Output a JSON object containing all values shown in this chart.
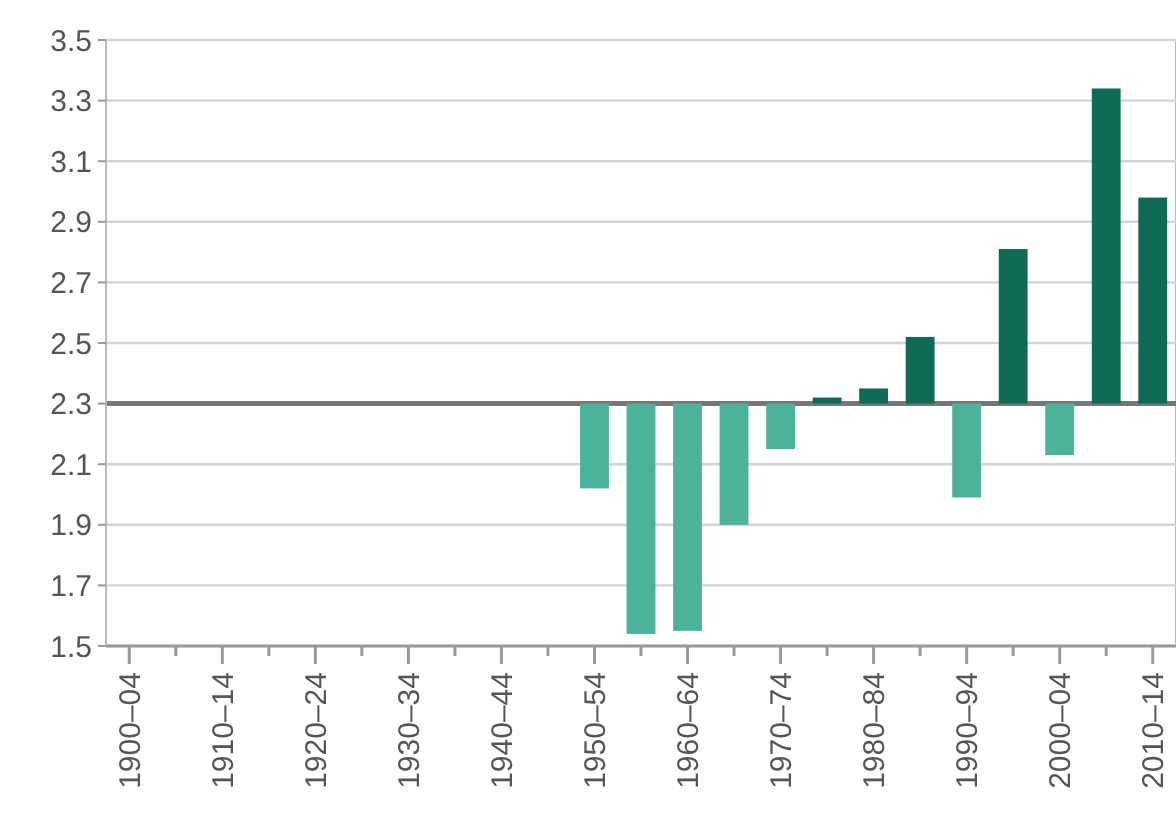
{
  "chart_data": {
    "type": "bar",
    "categories": [
      "1900–04",
      null,
      "1910–14",
      null,
      "1920–24",
      null,
      "1930–34",
      null,
      "1940–44",
      null,
      "1950–54",
      null,
      "1960–64",
      null,
      "1970–74",
      null,
      "1980–84",
      null,
      "1990–94",
      null,
      "2000–04",
      null,
      "2010–14"
    ],
    "base": [
      null,
      null,
      null,
      null,
      null,
      null,
      null,
      null,
      null,
      null,
      2.3,
      2.3,
      2.3,
      2.3,
      2.3,
      2.3,
      2.3,
      2.3,
      2.3,
      2.3,
      2.3,
      2.3,
      2.3
    ],
    "values": [
      null,
      null,
      null,
      null,
      null,
      null,
      null,
      null,
      null,
      null,
      -0.28,
      -0.76,
      -0.75,
      -0.4,
      -0.15,
      0.02,
      0.05,
      0.22,
      -0.31,
      0.51,
      -0.17,
      1.04,
      0.68
    ],
    "colors": [
      null,
      null,
      null,
      null,
      null,
      null,
      null,
      null,
      null,
      null,
      "#4bb39a",
      "#4bb39a",
      "#4bb39a",
      "#4bb39a",
      "#4bb39a",
      "#0f6b55",
      "#0f6b55",
      "#0f6b55",
      "#4bb39a",
      "#0f6b55",
      "#4bb39a",
      "#0f6b55",
      "#0f6b55"
    ],
    "ylim": [
      1.5,
      3.5
    ],
    "yticks": [
      1.5,
      1.7,
      1.9,
      2.1,
      2.3,
      2.5,
      2.7,
      2.9,
      3.1,
      3.3,
      3.5
    ],
    "grid": "y",
    "ref_lines": [
      {
        "axis": "y",
        "value": 2.3,
        "color": "#777777"
      }
    ]
  }
}
